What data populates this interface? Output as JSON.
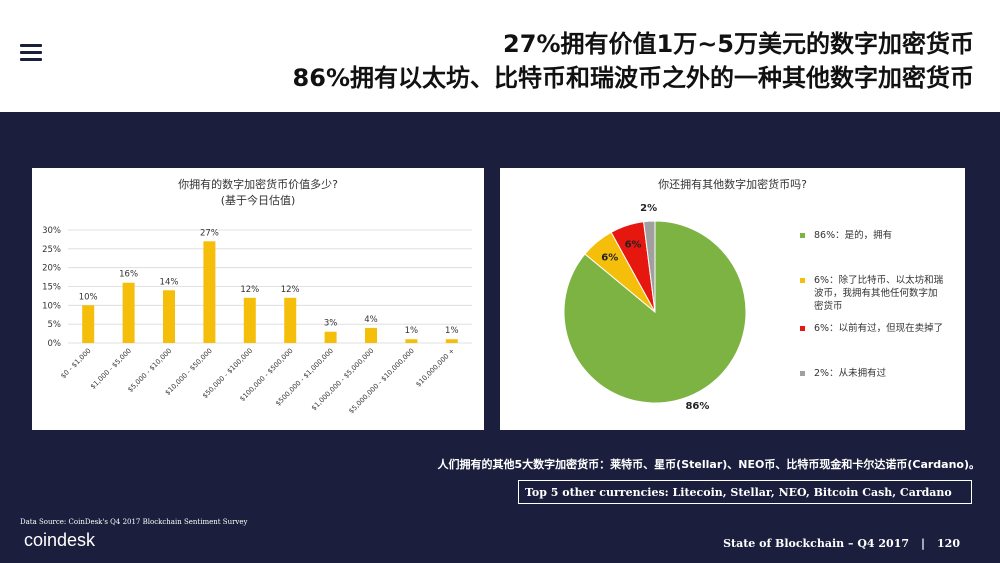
{
  "header": {
    "title_line1": "27%拥有价值1万~5万美元的数字加密货币",
    "title_line2": "86%拥有以太坊、比特币和瑞波币之外的一种其他数字加密货币"
  },
  "chart_data": [
    {
      "type": "bar",
      "title": "你拥有的数字加密货币价值多少?",
      "subtitle": "(基于今日估值)",
      "categories": [
        "$0 - $1,000",
        "$1,000 - $5,000",
        "$5,000 - $10,000",
        "$10,000 - $50,000",
        "$50,000 - $100,000",
        "$100,000 - $500,000",
        "$500,000 - $1,000,000",
        "$1,000,000 - $5,000,000",
        "$5,000,000 - $10,000,000",
        "$10,000,000 +"
      ],
      "values": [
        10,
        16,
        14,
        27,
        12,
        12,
        3,
        4,
        1,
        1
      ],
      "data_labels": [
        "10%",
        "16%",
        "14%",
        "27%",
        "12%",
        "12%",
        "3%",
        "4%",
        "1%",
        "1%"
      ],
      "yticks": [
        "0%",
        "5%",
        "10%",
        "15%",
        "20%",
        "25%",
        "30%"
      ],
      "ylim": [
        0,
        30
      ],
      "grid": true,
      "color": "#f5be0b"
    },
    {
      "type": "pie",
      "title": "你还拥有其他数字加密货币吗?",
      "slices": [
        {
          "label": "86%: 是的，拥有",
          "value": 86,
          "display": "86%",
          "color": "#7cb342"
        },
        {
          "label": "6%: 除了比特币、以太坊和瑞波币，我拥有其他任何数字加密货币",
          "value": 6,
          "display": "6%",
          "color": "#f5be0b"
        },
        {
          "label": "6%: 以前有过，但现在卖掉了",
          "value": 6,
          "display": "6%",
          "color": "#e5170f"
        },
        {
          "label": "2%: 从未拥有过",
          "value": 2,
          "display": "2%",
          "color": "#a0a0a0"
        }
      ],
      "legend_position": "right"
    }
  ],
  "legend": [
    {
      "text": "86%：是的，拥有",
      "color": "#7cb342"
    },
    {
      "text": "6%：除了比特币、以太坊和瑞波币，我拥有其他任何数字加密货币",
      "color": "#f5be0b"
    },
    {
      "text": "6%：以前有过，但现在卖掉了",
      "color": "#e5170f"
    },
    {
      "text": "2%：从未拥有过",
      "color": "#a0a0a0"
    }
  ],
  "subnote": "人们拥有的其他5大数字加密货币：莱特币、星币(Stellar)、NEO币、比特币现金和卡尔达诺币(Cardano)。",
  "top5": "Top 5 other currencies: Litecoin, Stellar, NEO, Bitcoin Cash, Cardano",
  "source": "Data Source: CoinDesk's Q4 2017 Blockchain Sentiment Survey",
  "logo": "coindesk",
  "footer": {
    "report": "State of Blockchain – Q4 2017",
    "page": "120"
  }
}
